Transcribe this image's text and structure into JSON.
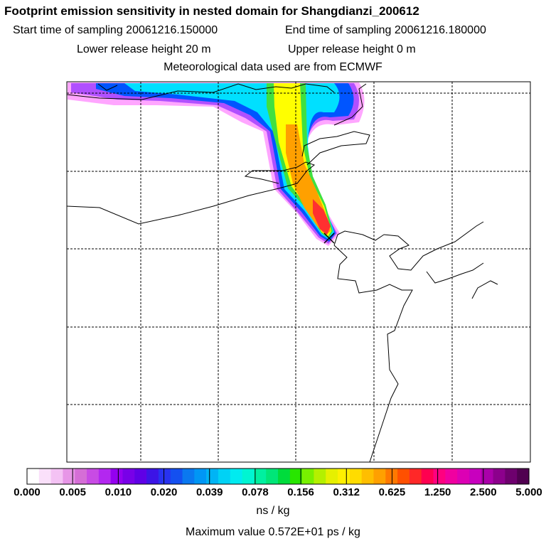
{
  "title": "Footprint emission sensitivity in nested domain for Shangdianzi_200612",
  "start_label": "Start time of sampling 20061216.150000",
  "end_label": "End time of sampling 20061216.180000",
  "lower_label": "Lower release height   20 m",
  "upper_label": "Upper release height    0 m",
  "met_label": "Meteorological data used are from ECMWF",
  "colorbar": {
    "ticks": [
      "0.000",
      "0.005",
      "0.010",
      "0.020",
      "0.039",
      "0.078",
      "0.156",
      "0.312",
      "0.625",
      "1.250",
      "2.500",
      "5.000"
    ],
    "unit": "ns / kg",
    "colors": [
      "#ffffff",
      "#fae0fa",
      "#f4c2f4",
      "#e796e7",
      "#d56ed6",
      "#c84be4",
      "#b327f0",
      "#9400f0",
      "#7800e8",
      "#5f00e6",
      "#3c14e6",
      "#2832f0",
      "#1450f0",
      "#0a78f0",
      "#0096f5",
      "#00b4f5",
      "#00d2f5",
      "#00ebf0",
      "#00f5d2",
      "#00f0a0",
      "#00e678",
      "#00dc3c",
      "#28e600",
      "#78f000",
      "#b4f000",
      "#e6f000",
      "#fff000",
      "#ffdc00",
      "#ffbe00",
      "#ffa000",
      "#ff7800",
      "#ff5000",
      "#ff2828",
      "#ff0050",
      "#ff0080",
      "#f000a0",
      "#dc00b4",
      "#c800be",
      "#aa00aa",
      "#8c008c",
      "#6e006e",
      "#500050"
    ]
  },
  "max_label": "Maximum value  0.572E+01 ps / kg",
  "map": {
    "receptor_marker": "cross-icon",
    "plume_levels": [
      "#ff80ff",
      "#b050ff",
      "#0055ff",
      "#00e0ff",
      "#40e040",
      "#ffff00",
      "#ffa000",
      "#ff3030"
    ]
  }
}
